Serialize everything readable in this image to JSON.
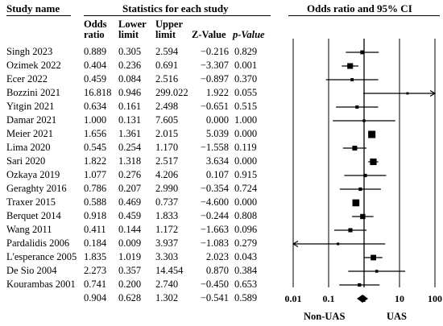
{
  "headers": {
    "study_name": "Study name",
    "statistics": "Statistics for each study",
    "plot": "Odds ratio and 95% CI",
    "odds_ratio": [
      "Odds",
      "ratio"
    ],
    "lower_limit": [
      "Lower",
      "limit"
    ],
    "upper_limit": [
      "Upper",
      "limit"
    ],
    "z_value": "Z-Value",
    "p_value": "p-Value"
  },
  "rows": [
    {
      "study": "Singh 2023",
      "or": "0.889",
      "lower": "0.305",
      "upper": "2.594",
      "z": "−0.216",
      "p": "0.829"
    },
    {
      "study": "Ozimek 2022",
      "or": "0.404",
      "lower": "0.236",
      "upper": "0.691",
      "z": "−3.307",
      "p": "0.001"
    },
    {
      "study": "Ecer 2022",
      "or": "0.459",
      "lower": "0.084",
      "upper": "2.516",
      "z": "−0.897",
      "p": "0.370"
    },
    {
      "study": "Bozzini 2021",
      "or": "16.818",
      "lower": "0.946",
      "upper": "299.022",
      "z": "1.922",
      "p": "0.055"
    },
    {
      "study": "Yitgin 2021",
      "or": "0.634",
      "lower": "0.161",
      "upper": "2.498",
      "z": "−0.651",
      "p": "0.515"
    },
    {
      "study": "Damar  2021",
      "or": "1.000",
      "lower": "0.131",
      "upper": "7.605",
      "z": "0.000",
      "p": "1.000"
    },
    {
      "study": "Meier 2021",
      "or": "1.656",
      "lower": "1.361",
      "upper": "2.015",
      "z": "5.039",
      "p": "0.000"
    },
    {
      "study": "Lima 2020",
      "or": "0.545",
      "lower": "0.254",
      "upper": "1.170",
      "z": "−1.558",
      "p": "0.119"
    },
    {
      "study": "Sari 2020",
      "or": "1.822",
      "lower": "1.318",
      "upper": "2.517",
      "z": "3.634",
      "p": "0.000"
    },
    {
      "study": "Ozkaya 2019",
      "or": "1.077",
      "lower": "0.276",
      "upper": "4.206",
      "z": "0.107",
      "p": "0.915"
    },
    {
      "study": "Geraghty 2016",
      "or": "0.786",
      "lower": "0.207",
      "upper": "2.990",
      "z": "−0.354",
      "p": "0.724"
    },
    {
      "study": "Traxer 2015",
      "or": "0.588",
      "lower": "0.469",
      "upper": "0.737",
      "z": "−4.600",
      "p": "0.000"
    },
    {
      "study": "Berquet 2014",
      "or": "0.918",
      "lower": "0.459",
      "upper": "1.833",
      "z": "−0.244",
      "p": "0.808"
    },
    {
      "study": "Wang 2011",
      "or": "0.411",
      "lower": "0.144",
      "upper": "1.172",
      "z": "−1.663",
      "p": "0.096"
    },
    {
      "study": "Pardalidis 2006",
      "or": "0.184",
      "lower": "0.009",
      "upper": "3.937",
      "z": "−1.083",
      "p": "0.279"
    },
    {
      "study": "L'esperance 2005",
      "or": "1.835",
      "lower": "1.019",
      "upper": "3.303",
      "z": "2.023",
      "p": "0.043"
    },
    {
      "study": "De Sio 2004",
      "or": "2.273",
      "lower": "0.357",
      "upper": "14.454",
      "z": "0.870",
      "p": "0.384"
    },
    {
      "study": "Kourambas 2001",
      "or": "0.741",
      "lower": "0.200",
      "upper": "2.740",
      "z": "−0.450",
      "p": "0.653"
    },
    {
      "study": "",
      "or": "0.904",
      "lower": "0.628",
      "upper": "1.302",
      "z": "−0.541",
      "p": "0.589"
    }
  ],
  "footer": {
    "left": "Non-UAS",
    "right": "UAS"
  },
  "chart_data": {
    "type": "forest",
    "x_scale": "log",
    "xlim": [
      0.01,
      100
    ],
    "x_ticks": [
      "0.01",
      "0.1",
      "1",
      "10",
      "100"
    ],
    "reference_line": 1,
    "studies": [
      {
        "name": "Singh 2023",
        "or": 0.889,
        "lower": 0.305,
        "upper": 2.594,
        "weight": 1.3
      },
      {
        "name": "Ozimek 2022",
        "or": 0.404,
        "lower": 0.236,
        "upper": 0.691,
        "weight": 2.3
      },
      {
        "name": "Ecer 2022",
        "or": 0.459,
        "lower": 0.084,
        "upper": 2.516,
        "weight": 0.8
      },
      {
        "name": "Bozzini 2021",
        "or": 16.818,
        "lower": 0.946,
        "upper": 299.022,
        "weight": 0.4,
        "arrow_right": true
      },
      {
        "name": "Yitgin 2021",
        "or": 0.634,
        "lower": 0.161,
        "upper": 2.498,
        "weight": 0.9
      },
      {
        "name": "Damar  2021",
        "or": 1.0,
        "lower": 0.131,
        "upper": 7.605,
        "weight": 0.6
      },
      {
        "name": "Meier 2021",
        "or": 1.656,
        "lower": 1.361,
        "upper": 2.015,
        "weight": 3.2
      },
      {
        "name": "Lima 2020",
        "or": 0.545,
        "lower": 0.254,
        "upper": 1.17,
        "weight": 1.8
      },
      {
        "name": "Sari 2020",
        "or": 1.822,
        "lower": 1.318,
        "upper": 2.517,
        "weight": 2.8
      },
      {
        "name": "Ozkaya 2019",
        "or": 1.077,
        "lower": 0.276,
        "upper": 4.206,
        "weight": 1.0
      },
      {
        "name": "Geraghty 2016",
        "or": 0.786,
        "lower": 0.207,
        "upper": 2.99,
        "weight": 1.0
      },
      {
        "name": "Traxer 2015",
        "or": 0.588,
        "lower": 0.469,
        "upper": 0.737,
        "weight": 3.0
      },
      {
        "name": "Berquet 2014",
        "or": 0.918,
        "lower": 0.459,
        "upper": 1.833,
        "weight": 2.0
      },
      {
        "name": "Wang 2011",
        "or": 0.411,
        "lower": 0.144,
        "upper": 1.172,
        "weight": 1.4
      },
      {
        "name": "Pardalidis 2006",
        "or": 0.184,
        "lower": 0.009,
        "upper": 3.937,
        "weight": 0.5,
        "arrow_left": true
      },
      {
        "name": "L'esperance 2005",
        "or": 1.835,
        "lower": 1.019,
        "upper": 3.303,
        "weight": 2.2
      },
      {
        "name": "De Sio 2004",
        "or": 2.273,
        "lower": 0.357,
        "upper": 14.454,
        "weight": 0.7
      },
      {
        "name": "Kourambas 2001",
        "or": 0.741,
        "lower": 0.2,
        "upper": 2.74,
        "weight": 1.0
      }
    ],
    "pooled": {
      "or": 0.904,
      "lower": 0.628,
      "upper": 1.302
    }
  }
}
